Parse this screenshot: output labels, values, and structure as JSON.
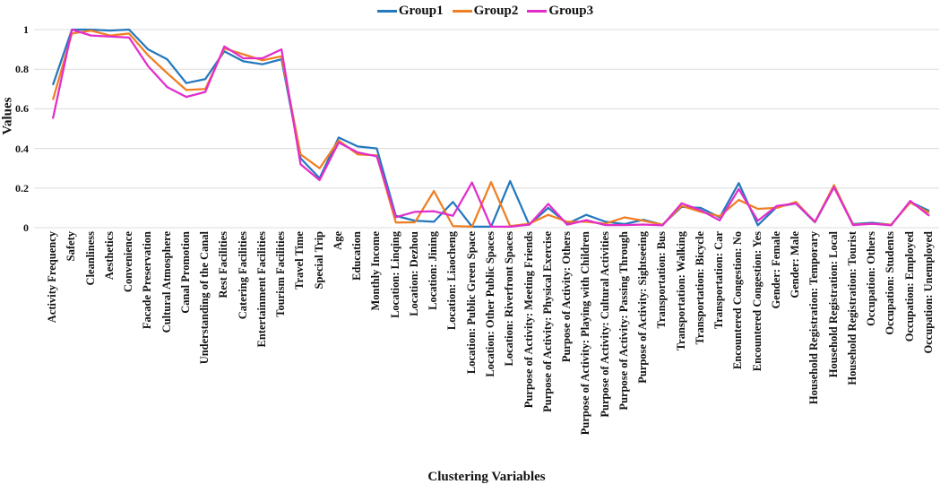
{
  "legend": {
    "items": [
      {
        "label": "Group1",
        "color": "#2478BE"
      },
      {
        "label": "Group2",
        "color": "#F07E22"
      },
      {
        "label": "Group3",
        "color": "#E22DCB"
      }
    ]
  },
  "y_axis": {
    "title": "Values",
    "ticks": [
      {
        "label": "1",
        "value": 1.0
      },
      {
        "label": "0.8",
        "value": 0.8
      },
      {
        "label": "0.6",
        "value": 0.6
      },
      {
        "label": "0.4",
        "value": 0.4
      },
      {
        "label": "0.2",
        "value": 0.2
      },
      {
        "label": "0",
        "value": 0.0
      }
    ]
  },
  "x_axis": {
    "title": "Clustering Variables"
  },
  "chart_data": {
    "type": "line",
    "title": "",
    "xlabel": "Clustering Variables",
    "ylabel": "Values",
    "ylim": [
      0,
      1
    ],
    "grid": "horizontal-only",
    "legend_position": "top-center",
    "colors": {
      "Group1": "#2478BE",
      "Group2": "#F07E22",
      "Group3": "#E22DCB"
    },
    "categories": [
      "Activity Frequency",
      "Safety",
      "Cleanliness",
      "Aesthetics",
      "Convenience",
      "Facade Preservation",
      "Cultural Atmosphere",
      "Canal Promotion",
      "Understanding of the Canal",
      "Rest Facilities",
      "Catering Facilities",
      "Entertainment Facilities",
      "Tourism Facilities",
      "Travel Time",
      "Special Trip",
      "Age",
      "Education",
      "Monthly Income",
      "Location: Linqing",
      "Location: Dezhou",
      "Location: Jining",
      "Location: Liaocheng",
      "Location: Public Green Space",
      "Location: Other Public Spaces",
      "Location: Riverfront Spaces",
      "Purpose of Activity: Meeting Friends",
      "Purpose of Activity: Physical Exercise",
      "Purpose of Activity: Others",
      "Purpose of Activity: Playing with Children",
      "Purpose of Activity: Cultural Activities",
      "Purpose of Activity: Passing Through",
      "Purpose of Activity: Sightseeing",
      "Transportation: Bus",
      "Transportation: Walking",
      "Transportation: Bicycle",
      "Transportation: Car",
      "Encountered Congestion: No",
      "Encountered Congestion: Yes",
      "Gender: Female",
      "Gender: Male",
      "Household Registration: Temporary",
      "Household Registration: Local",
      "Household Registration: Tourist",
      "Occupation: Others",
      "Occupation: Students",
      "Occupation: Employed",
      "Occupation: Unemployed"
    ],
    "series": [
      {
        "name": "Group1",
        "color": "#2478BE",
        "values": [
          0.72,
          1.0,
          1.0,
          0.995,
          1.0,
          0.9,
          0.85,
          0.73,
          0.75,
          0.89,
          0.84,
          0.825,
          0.85,
          0.35,
          0.25,
          0.455,
          0.41,
          0.4,
          0.06,
          0.035,
          0.03,
          0.13,
          0.005,
          0.005,
          0.235,
          0.015,
          0.1,
          0.02,
          0.065,
          0.03,
          0.018,
          0.04,
          0.015,
          0.105,
          0.1,
          0.052,
          0.225,
          0.012,
          0.105,
          0.122,
          0.027,
          0.205,
          0.018,
          0.025,
          0.015,
          0.13,
          0.085
        ]
      },
      {
        "name": "Group2",
        "color": "#F07E22",
        "values": [
          0.645,
          0.98,
          0.995,
          0.97,
          0.98,
          0.87,
          0.78,
          0.695,
          0.7,
          0.905,
          0.875,
          0.845,
          0.865,
          0.37,
          0.3,
          0.44,
          0.37,
          0.365,
          0.026,
          0.027,
          0.185,
          0.008,
          0.005,
          0.23,
          0.008,
          0.02,
          0.065,
          0.03,
          0.03,
          0.02,
          0.052,
          0.035,
          0.015,
          0.11,
          0.08,
          0.058,
          0.14,
          0.095,
          0.1,
          0.13,
          0.028,
          0.215,
          0.015,
          0.02,
          0.015,
          0.127,
          0.075
        ]
      },
      {
        "name": "Group3",
        "color": "#E22DCB",
        "values": [
          0.55,
          1.0,
          0.97,
          0.965,
          0.96,
          0.815,
          0.71,
          0.66,
          0.685,
          0.915,
          0.855,
          0.855,
          0.9,
          0.32,
          0.24,
          0.43,
          0.38,
          0.36,
          0.053,
          0.08,
          0.083,
          0.06,
          0.228,
          0.005,
          0.005,
          0.015,
          0.12,
          0.015,
          0.038,
          0.013,
          0.013,
          0.016,
          0.012,
          0.123,
          0.088,
          0.037,
          0.195,
          0.035,
          0.11,
          0.122,
          0.03,
          0.205,
          0.013,
          0.02,
          0.012,
          0.135,
          0.06
        ]
      }
    ]
  }
}
